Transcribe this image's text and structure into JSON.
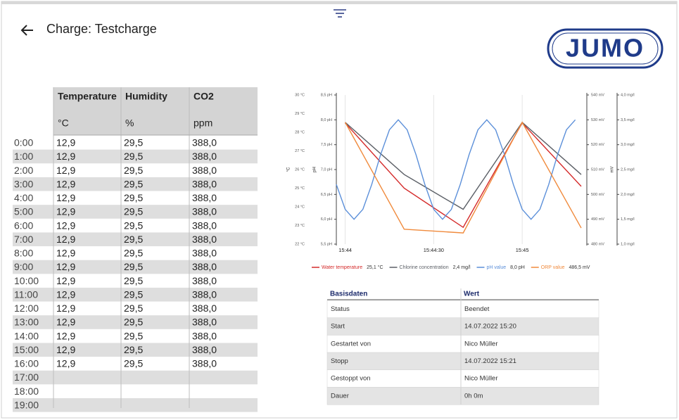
{
  "header": {
    "title": "Charge: Testcharge",
    "logo": "JUMO"
  },
  "table": {
    "columns": [
      "Temperature",
      "Humidity",
      "CO2"
    ],
    "units": [
      "°C",
      "%",
      "ppm"
    ],
    "rows": [
      [
        "0:00",
        "12,9",
        "29,5",
        "388,0"
      ],
      [
        "1:00",
        "12,9",
        "29,5",
        "388,0"
      ],
      [
        "2:00",
        "12,9",
        "29,5",
        "388,0"
      ],
      [
        "3:00",
        "12,9",
        "29,5",
        "388,0"
      ],
      [
        "4:00",
        "12,9",
        "29,5",
        "388,0"
      ],
      [
        "5:00",
        "12,9",
        "29,5",
        "388,0"
      ],
      [
        "6:00",
        "12,9",
        "29,5",
        "388,0"
      ],
      [
        "7:00",
        "12,9",
        "29,5",
        "388,0"
      ],
      [
        "8:00",
        "12,9",
        "29,5",
        "388,0"
      ],
      [
        "9:00",
        "12,9",
        "29,5",
        "388,0"
      ],
      [
        "10:00",
        "12,9",
        "29,5",
        "388,0"
      ],
      [
        "11:00",
        "12,9",
        "29,5",
        "388,0"
      ],
      [
        "12:00",
        "12,9",
        "29,5",
        "388,0"
      ],
      [
        "13:00",
        "12,9",
        "29,5",
        "388,0"
      ],
      [
        "14:00",
        "12,9",
        "29,5",
        "388,0"
      ],
      [
        "15:00",
        "12,9",
        "29,5",
        "388,0"
      ],
      [
        "16:00",
        "12,9",
        "29,5",
        "388,0"
      ],
      [
        "17:00"
      ],
      [
        "18:00"
      ],
      [
        "19:00"
      ]
    ]
  },
  "chart_data": {
    "type": "line",
    "xlim": [
      "15:43:57",
      "15:45:20"
    ],
    "xticks": [
      {
        "value": "15:44:00",
        "label": "15:44"
      },
      {
        "value": "15:44:30",
        "label": "15:44:30"
      },
      {
        "value": "15:45:00",
        "label": "15:45"
      }
    ],
    "grid": true,
    "axes": [
      {
        "id": "temp",
        "side": "left",
        "title": "°C",
        "lim": [
          22,
          30
        ],
        "ticks": [
          {
            "value": 22,
            "label": "22 °C"
          },
          {
            "value": 23,
            "label": "23 °C"
          },
          {
            "value": 24,
            "label": "24 °C"
          },
          {
            "value": 25,
            "label": "25 °C"
          },
          {
            "value": 26,
            "label": "26 °C"
          },
          {
            "value": 27,
            "label": "27 °C"
          },
          {
            "value": 28,
            "label": "28 °C"
          },
          {
            "value": 29,
            "label": "29 °C"
          },
          {
            "value": 30,
            "label": "30 °C"
          }
        ]
      },
      {
        "id": "ph",
        "side": "left",
        "title": "pH",
        "lim": [
          5.5,
          8.5
        ],
        "ticks": [
          {
            "value": 5.5,
            "label": "5,5 pH"
          },
          {
            "value": 6,
            "label": "6,0 pH"
          },
          {
            "value": 6.5,
            "label": "6,5 pH"
          },
          {
            "value": 7,
            "label": "7,0 pH"
          },
          {
            "value": 7.5,
            "label": "7,5 pH"
          },
          {
            "value": 8,
            "label": "8,0 pH"
          },
          {
            "value": 8.5,
            "label": "8,5 pH"
          }
        ]
      },
      {
        "id": "orp",
        "side": "right",
        "title": "mV",
        "lim": [
          480,
          540
        ],
        "ticks": [
          {
            "value": 480,
            "label": "480 mV"
          },
          {
            "value": 490,
            "label": "490 mV"
          },
          {
            "value": 500,
            "label": "500 mV"
          },
          {
            "value": 510,
            "label": "510 mV"
          },
          {
            "value": 520,
            "label": "520 mV"
          },
          {
            "value": 530,
            "label": "530 mV"
          },
          {
            "value": 540,
            "label": "540 mV"
          }
        ]
      },
      {
        "id": "cl",
        "side": "right",
        "lim": [
          1,
          4
        ],
        "ticks": [
          {
            "value": 1,
            "label": "1,0 mg/l"
          },
          {
            "value": 1.5,
            "label": "1,5 mg/l"
          },
          {
            "value": 2,
            "label": "2,0 mg/l"
          },
          {
            "value": 2.5,
            "label": "2,5 mg/l"
          },
          {
            "value": 3,
            "label": "3,0 mg/l"
          },
          {
            "value": 3.5,
            "label": "3,5 mg/l"
          },
          {
            "value": 4,
            "label": "4,0 mg/l"
          }
        ]
      }
    ],
    "series": [
      {
        "name": "Water temperature",
        "color": "#d42a2a",
        "axis": "temp",
        "x": [
          "15:44:00",
          "15:44:20",
          "15:44:40",
          "15:45:00",
          "15:45:20"
        ],
        "values": [
          28.5,
          25.0,
          22.9,
          28.5,
          25.1
        ],
        "value_label": "25,1 °C"
      },
      {
        "name": "Chlorine concentration",
        "color": "#5b5f66",
        "axis": "cl",
        "x": [
          "15:44:00",
          "15:44:20",
          "15:44:40",
          "15:45:00",
          "15:45:20"
        ],
        "values": [
          3.45,
          2.4,
          1.7,
          3.45,
          2.4
        ],
        "value_label": "2,4 mg/l"
      },
      {
        "name": "pH value",
        "color": "#5b8fd9",
        "axis": "ph",
        "x": [
          "15:43:57",
          "15:44:00",
          "15:44:03",
          "15:44:06",
          "15:44:09",
          "15:44:12",
          "15:44:15",
          "15:44:18",
          "15:44:21",
          "15:44:24",
          "15:44:27",
          "15:44:30",
          "15:44:33",
          "15:44:36",
          "15:44:39",
          "15:44:42",
          "15:44:45",
          "15:44:48",
          "15:44:51",
          "15:44:54",
          "15:44:57",
          "15:45:00",
          "15:45:03",
          "15:45:06",
          "15:45:09",
          "15:45:12",
          "15:45:15",
          "15:45:18"
        ],
        "values": [
          6.7,
          6.2,
          6.0,
          6.2,
          6.7,
          7.3,
          7.8,
          8.0,
          7.8,
          7.3,
          6.7,
          6.2,
          6.0,
          6.2,
          6.7,
          7.3,
          7.8,
          8.0,
          7.8,
          7.3,
          6.7,
          6.2,
          6.0,
          6.2,
          6.7,
          7.3,
          7.8,
          8.0
        ],
        "value_label": "8,0 pH"
      },
      {
        "name": "ORP value",
        "color": "#f08a3c",
        "axis": "orp",
        "x": [
          "15:44:00",
          "15:44:20",
          "15:44:40",
          "15:45:00",
          "15:45:20"
        ],
        "values": [
          529,
          486,
          484.5,
          529,
          486.5
        ],
        "value_label": "486,5 mV"
      }
    ]
  },
  "basisdaten": {
    "columns": [
      "Basisdaten",
      "Wert"
    ],
    "rows": [
      [
        "Status",
        "Beendet"
      ],
      [
        "Start",
        "14.07.2022 15:20"
      ],
      [
        "Gestartet von",
        "Nico Müller"
      ],
      [
        "Stopp",
        "14.07.2022 15:21"
      ],
      [
        "Gestoppt von",
        "Nico Müller"
      ],
      [
        "Dauer",
        "0h 0m"
      ]
    ]
  }
}
